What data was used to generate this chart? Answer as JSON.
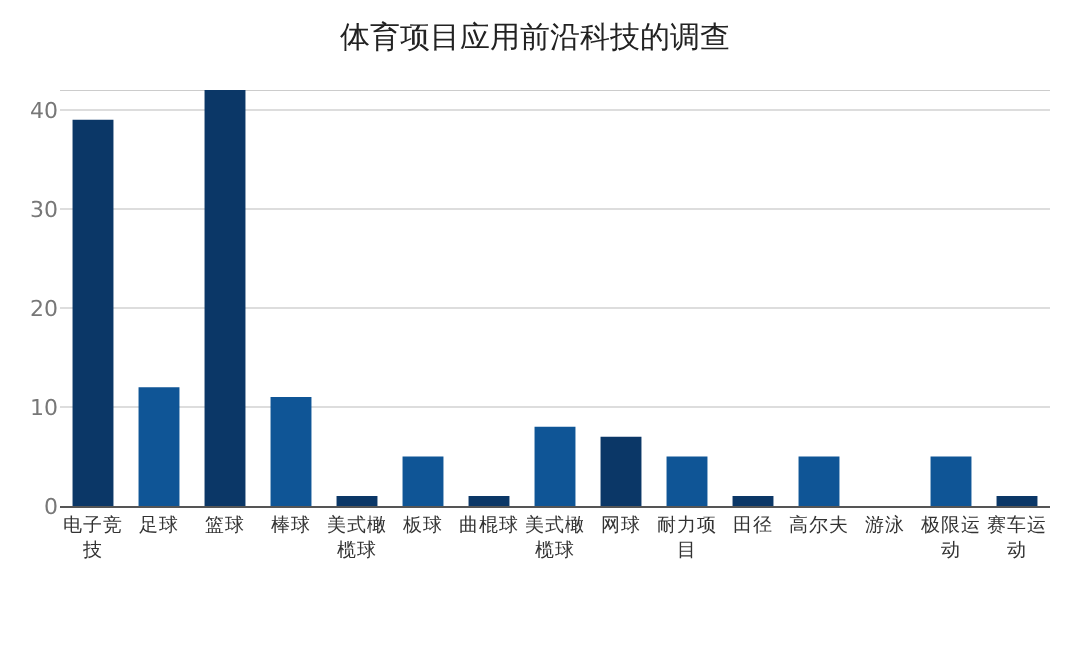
{
  "chart_data": {
    "type": "bar",
    "title": "体育项目应用前沿科技的调查",
    "categories": [
      "电子竞技",
      "足球",
      "篮球",
      "棒球",
      "美式橄榄球",
      "板球",
      "曲棍球",
      "美式橄榄球",
      "网球",
      "耐力项目",
      "田径",
      "高尔夫",
      "游泳",
      "极限运动",
      "赛车运动"
    ],
    "values": [
      39,
      12,
      42,
      11,
      1,
      5,
      1,
      8,
      7,
      5,
      1,
      5,
      0,
      5,
      1
    ],
    "colors": [
      "#0b3767",
      "#0f5596",
      "#0b3767",
      "#0f5596",
      "#0b3767",
      "#0f5596",
      "#0b3767",
      "#0f5596",
      "#0b3767",
      "#0f5596",
      "#0b3767",
      "#0f5596",
      "#0f5596",
      "#0f5596",
      "#0b3767"
    ],
    "ylim": [
      0,
      42
    ],
    "yticks": [
      0,
      10,
      20,
      30,
      40
    ],
    "grid": "y"
  }
}
